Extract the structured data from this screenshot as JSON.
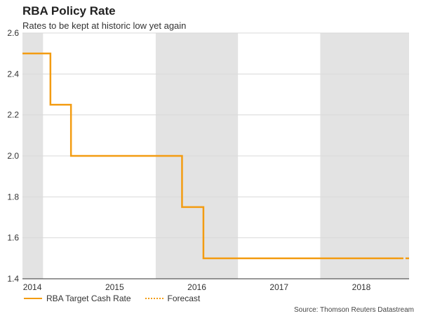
{
  "chart_data": {
    "type": "line",
    "title": "RBA Policy Rate",
    "subtitle": "Rates to be kept at historic low yet again",
    "xlabel": "",
    "ylabel": "",
    "xlim": [
      2013.88,
      2018.58
    ],
    "ylim": [
      1.4,
      2.6
    ],
    "y_ticks": [
      1.4,
      1.6,
      1.8,
      2.0,
      2.2,
      2.4,
      2.6
    ],
    "y_tick_labels": [
      "1.4",
      "1.6",
      "1.8",
      "2.0",
      "2.2",
      "2.4",
      "2.6"
    ],
    "x_tick_labels": [
      {
        "label": "2014",
        "at": 2014.0
      },
      {
        "label": "2015",
        "at": 2015.0
      },
      {
        "label": "2016",
        "at": 2016.0
      },
      {
        "label": "2017",
        "at": 2017.0
      },
      {
        "label": "2018",
        "at": 2018.0
      }
    ],
    "shaded_periods": [
      {
        "name": "2014",
        "start": 2013.88,
        "end": 2014.13
      },
      {
        "name": "2016",
        "start": 2015.5,
        "end": 2016.5
      },
      {
        "name": "2018",
        "start": 2017.5,
        "end": 2018.58
      }
    ],
    "series": [
      {
        "name": "RBA Target Cash Rate",
        "style": "solid",
        "color": "#f39c12",
        "step_points": [
          {
            "x": 2013.88,
            "y": 2.5
          },
          {
            "x": 2014.22,
            "y": 2.25
          },
          {
            "x": 2014.47,
            "y": 2.0
          },
          {
            "x": 2015.82,
            "y": 1.75
          },
          {
            "x": 2016.08,
            "y": 1.5
          },
          {
            "x": 2018.46,
            "y": 1.5
          }
        ]
      },
      {
        "name": "Forecast",
        "style": "dotted",
        "color": "#f39c12",
        "step_points": [
          {
            "x": 2018.46,
            "y": 1.5
          },
          {
            "x": 2018.58,
            "y": 1.5
          }
        ]
      }
    ],
    "legend": [
      "RBA Target Cash Rate",
      "Forecast"
    ],
    "legend_position": "bottom-left",
    "source": "Source: Thomson Reuters Datastream",
    "colors": {
      "line": "#f39c12",
      "shade": "#e3e3e3",
      "grid": "#d9d9d9"
    }
  }
}
